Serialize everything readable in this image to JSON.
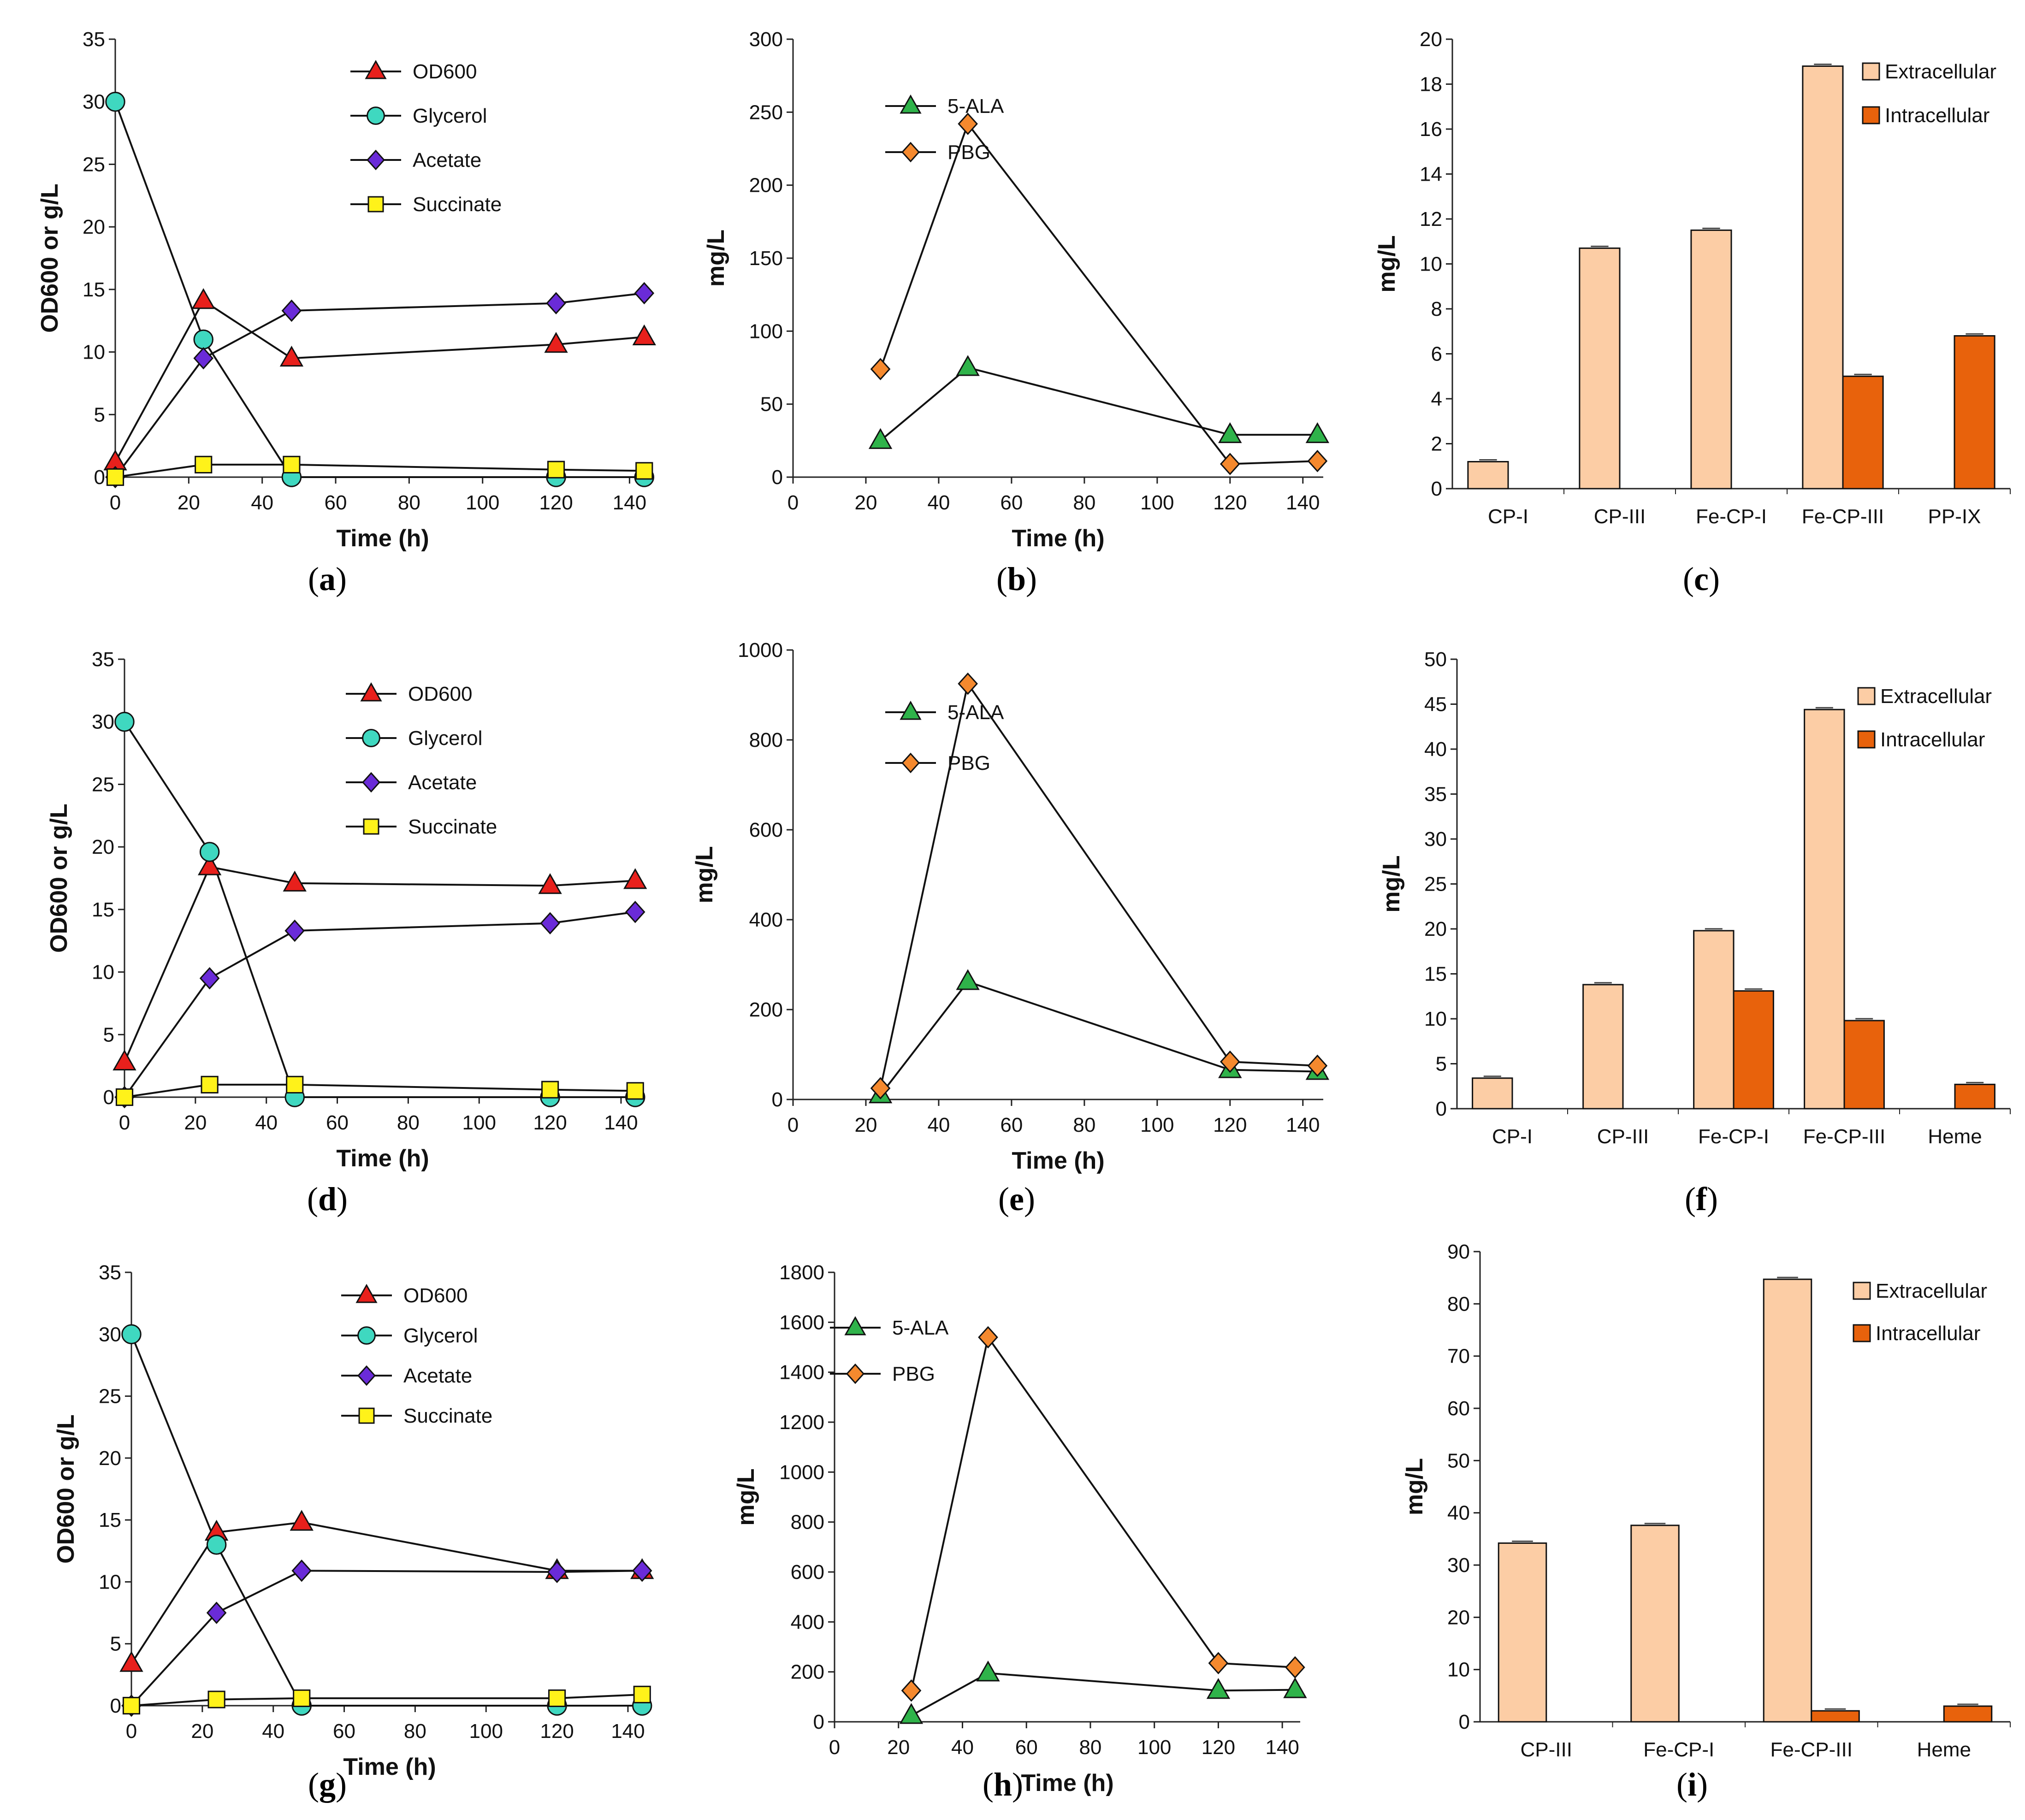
{
  "chart_data": [
    {
      "id": "a",
      "type": "line",
      "caption": "a",
      "xlabel": "Time (h)",
      "ylabel": "OD600 or g/L",
      "xlim": [
        0,
        140
      ],
      "xticks": [
        0,
        20,
        40,
        60,
        80,
        100,
        120,
        140
      ],
      "ylim": [
        0,
        35
      ],
      "yticks": [
        0,
        5,
        10,
        15,
        20,
        25,
        30,
        35
      ],
      "series": [
        {
          "name": "OD600",
          "marker": "triangle",
          "color": "#e8201c",
          "x": [
            0,
            24,
            48,
            120,
            144
          ],
          "y": [
            1.2,
            14.1,
            9.5,
            10.6,
            11.2
          ]
        },
        {
          "name": "Glycerol",
          "marker": "circle",
          "color": "#3fd8c0",
          "x": [
            0,
            24,
            48,
            120,
            144
          ],
          "y": [
            30,
            11,
            0,
            0,
            0
          ]
        },
        {
          "name": "Acetate",
          "marker": "diamond",
          "color": "#6a2bd8",
          "x": [
            0,
            24,
            48,
            120,
            144
          ],
          "y": [
            0,
            9.5,
            13.3,
            13.9,
            14.7
          ]
        },
        {
          "name": "Succinate",
          "marker": "square",
          "color": "#fff21a",
          "x": [
            0,
            24,
            48,
            120,
            144
          ],
          "y": [
            0,
            1.0,
            1.0,
            0.6,
            0.5
          ]
        }
      ]
    },
    {
      "id": "b",
      "type": "line",
      "caption": "b",
      "xlabel": "Time (h)",
      "ylabel": "mg/L",
      "xlim": [
        0,
        140
      ],
      "xticks": [
        0,
        20,
        40,
        60,
        80,
        100,
        120,
        140
      ],
      "ylim": [
        0,
        300
      ],
      "yticks": [
        0,
        50,
        100,
        150,
        200,
        250,
        300
      ],
      "series": [
        {
          "name": "5-ALA",
          "marker": "triangle",
          "color": "#2fb34a",
          "x": [
            24,
            48,
            120,
            144
          ],
          "y": [
            25,
            75,
            29,
            29
          ]
        },
        {
          "name": "PBG",
          "marker": "diamond",
          "color": "#f5892e",
          "x": [
            24,
            48,
            120,
            144
          ],
          "y": [
            74,
            242,
            9,
            11
          ]
        }
      ]
    },
    {
      "id": "c",
      "type": "bar",
      "caption": "c",
      "xlabel": "",
      "ylabel": "mg/L",
      "ylim": [
        0,
        20
      ],
      "yticks": [
        0,
        2,
        4,
        6,
        8,
        10,
        12,
        14,
        16,
        18,
        20
      ],
      "categories": [
        "CP-I",
        "CP-III",
        "Fe-CP-I",
        "Fe-CP-III",
        "PP-IX"
      ],
      "series": [
        {
          "name": "Extracellular",
          "color": "#fccda5",
          "values": [
            1.2,
            10.7,
            11.5,
            18.8,
            0
          ]
        },
        {
          "name": "Intracellular",
          "color": "#e8620c",
          "values": [
            0,
            0,
            0,
            5.0,
            6.8
          ]
        }
      ]
    },
    {
      "id": "d",
      "type": "line",
      "caption": "d",
      "xlabel": "Time (h)",
      "ylabel": "OD600 or g/L",
      "xlim": [
        0,
        140
      ],
      "xticks": [
        0,
        20,
        40,
        60,
        80,
        100,
        120,
        140
      ],
      "ylim": [
        0,
        35
      ],
      "yticks": [
        0,
        5,
        10,
        15,
        20,
        25,
        30,
        35
      ],
      "series": [
        {
          "name": "OD600",
          "marker": "triangle",
          "color": "#e8201c",
          "x": [
            0,
            24,
            48,
            120,
            144
          ],
          "y": [
            2.8,
            18.4,
            17.1,
            16.9,
            17.3
          ]
        },
        {
          "name": "Glycerol",
          "marker": "circle",
          "color": "#3fd8c0",
          "x": [
            0,
            24,
            48,
            120,
            144
          ],
          "y": [
            30,
            19.6,
            0,
            0,
            0
          ]
        },
        {
          "name": "Acetate",
          "marker": "diamond",
          "color": "#6a2bd8",
          "x": [
            0,
            24,
            48,
            120,
            144
          ],
          "y": [
            0,
            9.5,
            13.3,
            13.9,
            14.8
          ]
        },
        {
          "name": "Succinate",
          "marker": "square",
          "color": "#fff21a",
          "x": [
            0,
            24,
            48,
            120,
            144
          ],
          "y": [
            0,
            1.0,
            1.0,
            0.6,
            0.5
          ]
        }
      ]
    },
    {
      "id": "e",
      "type": "line",
      "caption": "e",
      "xlabel": "Time (h)",
      "ylabel": "mg/L",
      "xlim": [
        0,
        140
      ],
      "xticks": [
        0,
        20,
        40,
        60,
        80,
        100,
        120,
        140
      ],
      "ylim": [
        0,
        1000
      ],
      "yticks": [
        0,
        200,
        400,
        600,
        800,
        1000
      ],
      "series": [
        {
          "name": "5-ALA",
          "marker": "triangle",
          "color": "#2fb34a",
          "x": [
            24,
            48,
            120,
            144
          ],
          "y": [
            10,
            262,
            66,
            62
          ]
        },
        {
          "name": "PBG",
          "marker": "diamond",
          "color": "#f5892e",
          "x": [
            24,
            48,
            120,
            144
          ],
          "y": [
            25,
            925,
            84,
            75
          ]
        }
      ]
    },
    {
      "id": "f",
      "type": "bar",
      "caption": "f",
      "xlabel": "",
      "ylabel": "mg/L",
      "ylim": [
        0,
        50
      ],
      "yticks": [
        0,
        5,
        10,
        15,
        20,
        25,
        30,
        35,
        40,
        45,
        50
      ],
      "categories": [
        "CP-I",
        "CP-III",
        "Fe-CP-I",
        "Fe-CP-III",
        "Heme"
      ],
      "series": [
        {
          "name": "Extracellular",
          "color": "#fccda5",
          "values": [
            3.4,
            13.8,
            19.8,
            44.4,
            0
          ]
        },
        {
          "name": "Intracellular",
          "color": "#e8620c",
          "values": [
            0,
            0,
            13.1,
            9.8,
            2.7
          ]
        }
      ]
    },
    {
      "id": "g",
      "type": "line",
      "caption": "g",
      "xlabel": "Time (h)",
      "ylabel": "OD600 or g/L",
      "xlim": [
        0,
        140
      ],
      "xticks": [
        0,
        20,
        40,
        60,
        80,
        100,
        120,
        140
      ],
      "ylim": [
        0,
        35
      ],
      "yticks": [
        0,
        5,
        10,
        15,
        20,
        25,
        30,
        35
      ],
      "series": [
        {
          "name": "OD600",
          "marker": "triangle",
          "color": "#e8201c",
          "x": [
            0,
            24,
            48,
            120,
            144
          ],
          "y": [
            3.4,
            14.0,
            14.8,
            10.9,
            10.9
          ]
        },
        {
          "name": "Glycerol",
          "marker": "circle",
          "color": "#3fd8c0",
          "x": [
            0,
            24,
            48,
            120,
            144
          ],
          "y": [
            30,
            13,
            0,
            0,
            0
          ]
        },
        {
          "name": "Acetate",
          "marker": "diamond",
          "color": "#6a2bd8",
          "x": [
            0,
            24,
            48,
            120,
            144
          ],
          "y": [
            0,
            7.5,
            10.9,
            10.8,
            10.9
          ]
        },
        {
          "name": "Succinate",
          "marker": "square",
          "color": "#fff21a",
          "x": [
            0,
            24,
            48,
            120,
            144
          ],
          "y": [
            0,
            0.5,
            0.6,
            0.6,
            0.9
          ]
        }
      ]
    },
    {
      "id": "h",
      "type": "line",
      "caption": "h",
      "xlabel": "Time (h)",
      "ylabel": "mg/L",
      "xlim": [
        0,
        140
      ],
      "xticks": [
        0,
        20,
        40,
        60,
        80,
        100,
        120,
        140
      ],
      "ylim": [
        0,
        1800
      ],
      "yticks": [
        0,
        200,
        400,
        600,
        800,
        1000,
        1200,
        1400,
        1600,
        1800
      ],
      "series": [
        {
          "name": "5-ALA",
          "marker": "triangle",
          "color": "#2fb34a",
          "x": [
            24,
            48,
            120,
            144
          ],
          "y": [
            25,
            195,
            125,
            128
          ]
        },
        {
          "name": "PBG",
          "marker": "diamond",
          "color": "#f5892e",
          "x": [
            24,
            48,
            120,
            144
          ],
          "y": [
            125,
            1540,
            235,
            218
          ]
        }
      ]
    },
    {
      "id": "i",
      "type": "bar",
      "caption": "i",
      "xlabel": "",
      "ylabel": "mg/L",
      "ylim": [
        0,
        90
      ],
      "yticks": [
        0,
        10,
        20,
        30,
        40,
        50,
        60,
        70,
        80,
        90
      ],
      "categories": [
        "CP-III",
        "Fe-CP-I",
        "Fe-CP-III",
        "Heme"
      ],
      "series": [
        {
          "name": "Extracellular",
          "color": "#fccda5",
          "values": [
            34.2,
            37.6,
            84.7,
            0
          ]
        },
        {
          "name": "Intracellular",
          "color": "#e8620c",
          "values": [
            0,
            0,
            2.1,
            3.0
          ]
        }
      ]
    }
  ]
}
